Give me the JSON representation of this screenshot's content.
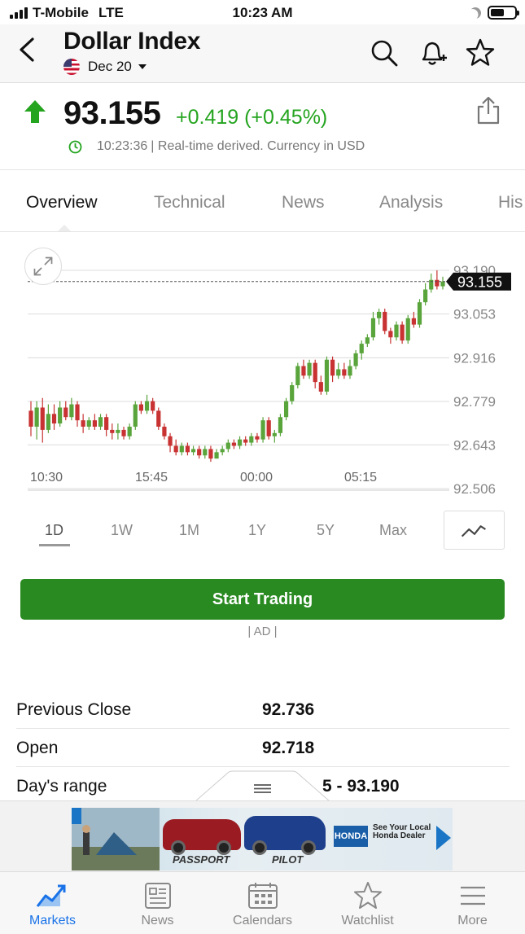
{
  "status_bar": {
    "carrier": "T-Mobile",
    "network": "LTE",
    "time": "10:23 AM"
  },
  "header": {
    "title": "Dollar Index",
    "contract": "Dec 20"
  },
  "quote": {
    "price": "93.155",
    "change": "+0.419 (+0.45%)",
    "time": "10:23:36",
    "note": "| Real-time derived. Currency in USD",
    "up_color": "#24a41f"
  },
  "tabs": [
    {
      "label": "Overview",
      "active": true
    },
    {
      "label": "Technical",
      "active": false
    },
    {
      "label": "News",
      "active": false
    },
    {
      "label": "Analysis",
      "active": false
    },
    {
      "label": "His",
      "active": false
    }
  ],
  "chart_data": {
    "type": "candlestick",
    "x_ticks": [
      "10:30",
      "15:45",
      "00:00",
      "05:15"
    ],
    "y_ticks": [
      93.19,
      93.053,
      92.916,
      92.779,
      92.643,
      92.506
    ],
    "ylim": [
      92.506,
      93.19
    ],
    "last_price": 93.155,
    "last_price_label": "93.155",
    "grid": true,
    "up_color": "#5aa43c",
    "down_color": "#c83232",
    "candles": [
      [
        92.75,
        92.7,
        92.78,
        92.67
      ],
      [
        92.7,
        92.76,
        92.78,
        92.66
      ],
      [
        92.76,
        92.69,
        92.79,
        92.65
      ],
      [
        92.69,
        92.74,
        92.77,
        92.68
      ],
      [
        92.74,
        92.71,
        92.77,
        92.69
      ],
      [
        92.71,
        92.76,
        92.78,
        92.7
      ],
      [
        92.76,
        92.73,
        92.78,
        92.72
      ],
      [
        92.73,
        92.77,
        92.79,
        92.72
      ],
      [
        92.77,
        92.72,
        92.78,
        92.7
      ],
      [
        92.72,
        92.7,
        92.74,
        92.68
      ],
      [
        92.7,
        92.72,
        92.73,
        92.69
      ],
      [
        92.72,
        92.7,
        92.74,
        92.69
      ],
      [
        92.7,
        92.73,
        92.74,
        92.69
      ],
      [
        92.73,
        92.69,
        92.74,
        92.67
      ],
      [
        92.69,
        92.68,
        92.71,
        92.66
      ],
      [
        92.68,
        92.69,
        92.71,
        92.66
      ],
      [
        92.69,
        92.67,
        92.7,
        92.66
      ],
      [
        92.67,
        92.7,
        92.71,
        92.66
      ],
      [
        92.7,
        92.77,
        92.78,
        92.69
      ],
      [
        92.77,
        92.75,
        92.78,
        92.74
      ],
      [
        92.75,
        92.78,
        92.8,
        92.74
      ],
      [
        92.78,
        92.75,
        92.79,
        92.74
      ],
      [
        92.75,
        92.7,
        92.76,
        92.69
      ],
      [
        92.7,
        92.67,
        92.71,
        92.66
      ],
      [
        92.67,
        92.64,
        92.68,
        92.62
      ],
      [
        92.64,
        92.62,
        92.66,
        92.61
      ],
      [
        92.62,
        92.64,
        92.65,
        92.61
      ],
      [
        92.64,
        92.62,
        92.65,
        92.61
      ],
      [
        92.62,
        92.63,
        92.64,
        92.61
      ],
      [
        92.63,
        92.61,
        92.64,
        92.6
      ],
      [
        92.61,
        92.63,
        92.64,
        92.6
      ],
      [
        92.63,
        92.6,
        92.64,
        92.59
      ],
      [
        92.6,
        92.62,
        92.63,
        92.6
      ],
      [
        92.62,
        92.63,
        92.64,
        92.61
      ],
      [
        92.63,
        92.65,
        92.66,
        92.62
      ],
      [
        92.65,
        92.64,
        92.66,
        92.63
      ],
      [
        92.64,
        92.66,
        92.67,
        92.63
      ],
      [
        92.66,
        92.65,
        92.67,
        92.64
      ],
      [
        92.65,
        92.67,
        92.68,
        92.64
      ],
      [
        92.67,
        92.66,
        92.68,
        92.65
      ],
      [
        92.66,
        92.72,
        92.73,
        92.65
      ],
      [
        92.72,
        92.67,
        92.73,
        92.66
      ],
      [
        92.67,
        92.68,
        92.69,
        92.65
      ],
      [
        92.68,
        92.73,
        92.74,
        92.67
      ],
      [
        92.73,
        92.78,
        92.79,
        92.72
      ],
      [
        92.78,
        92.83,
        92.84,
        92.77
      ],
      [
        92.83,
        92.89,
        92.9,
        92.82
      ],
      [
        92.89,
        92.86,
        92.91,
        92.85
      ],
      [
        92.86,
        92.9,
        92.91,
        92.85
      ],
      [
        92.9,
        92.84,
        92.91,
        92.82
      ],
      [
        92.84,
        92.81,
        92.86,
        92.8
      ],
      [
        92.81,
        92.91,
        92.92,
        92.8
      ],
      [
        92.91,
        92.86,
        92.92,
        92.84
      ],
      [
        92.86,
        92.88,
        92.9,
        92.85
      ],
      [
        92.88,
        92.86,
        92.9,
        92.85
      ],
      [
        92.86,
        92.89,
        92.91,
        92.85
      ],
      [
        92.89,
        92.93,
        92.94,
        92.88
      ],
      [
        92.93,
        92.96,
        92.97,
        92.91
      ],
      [
        92.96,
        92.98,
        92.99,
        92.95
      ],
      [
        92.98,
        93.04,
        93.06,
        92.97
      ],
      [
        93.04,
        93.06,
        93.07,
        93.02
      ],
      [
        93.06,
        93.0,
        93.07,
        92.99
      ],
      [
        93.0,
        92.98,
        93.01,
        92.96
      ],
      [
        92.98,
        93.02,
        93.03,
        92.97
      ],
      [
        93.02,
        92.97,
        93.03,
        92.96
      ],
      [
        92.97,
        93.04,
        93.05,
        92.96
      ],
      [
        93.04,
        93.02,
        93.06,
        93.01
      ],
      [
        93.02,
        93.09,
        93.1,
        93.01
      ],
      [
        93.09,
        93.13,
        93.15,
        93.08
      ],
      [
        93.13,
        93.16,
        93.18,
        93.12
      ],
      [
        93.16,
        93.14,
        93.19,
        93.13
      ],
      [
        93.14,
        93.155,
        93.17,
        93.13
      ]
    ]
  },
  "ranges": [
    {
      "label": "1D",
      "active": true
    },
    {
      "label": "1W",
      "active": false
    },
    {
      "label": "1M",
      "active": false
    },
    {
      "label": "1Y",
      "active": false
    },
    {
      "label": "5Y",
      "active": false
    },
    {
      "label": "Max",
      "active": false
    }
  ],
  "trade": {
    "button": "Start Trading",
    "ad_label": "| AD |"
  },
  "stats": [
    {
      "label": "Previous Close",
      "value": "92.736"
    },
    {
      "label": "Open",
      "value": "92.718"
    },
    {
      "label": "Day's range",
      "value": "5 - 93.190"
    }
  ],
  "banner": {
    "model_1": "PASSPORT",
    "model_2": "PILOT",
    "brand": "HONDA",
    "cta": "See Your Local Honda Dealer",
    "car_colors": [
      "#9a1b22",
      "#1e3f8c"
    ]
  },
  "bottom_nav": [
    {
      "label": "Markets",
      "icon": "markets-chart-icon",
      "active": true
    },
    {
      "label": "News",
      "icon": "news-icon",
      "active": false
    },
    {
      "label": "Calendars",
      "icon": "calendar-icon",
      "active": false
    },
    {
      "label": "Watchlist",
      "icon": "star-icon",
      "active": false
    },
    {
      "label": "More",
      "icon": "menu-icon",
      "active": false
    }
  ]
}
